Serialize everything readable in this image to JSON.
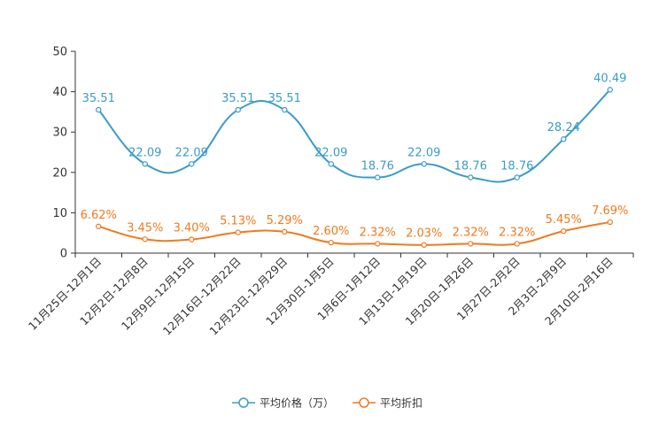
{
  "chart_data": {
    "type": "line",
    "title": "",
    "xlabel": "",
    "ylabel": "",
    "ylim": [
      0,
      50
    ],
    "yticks": [
      0,
      10,
      20,
      30,
      40,
      50
    ],
    "grid": false,
    "legend_position": "bottom-center",
    "categories": [
      "11月25日-12月1日",
      "12月2日-12月8日",
      "12月9日-12月15日",
      "12月16日-12月22日",
      "12月23日-12月29日",
      "12月30日-1月5日",
      "1月6日-1月12日",
      "1月13日-1月19日",
      "1月20日-1月26日",
      "1月27日-2月2日",
      "2月3日-2月9日",
      "2月10日-2月16日"
    ],
    "series": [
      {
        "name": "平均价格（万）",
        "color": "#3a9cc9",
        "values": [
          35.51,
          22.09,
          22.09,
          35.51,
          35.51,
          22.09,
          18.76,
          22.09,
          18.76,
          18.76,
          28.24,
          40.49
        ],
        "labels": [
          "35.51",
          "22.09",
          "22.09",
          "35.51",
          "35.51",
          "22.09",
          "18.76",
          "22.09",
          "18.76",
          "18.76",
          "28.24",
          "40.49"
        ]
      },
      {
        "name": "平均折扣",
        "color": "#f07a1d",
        "values": [
          6.62,
          3.45,
          3.4,
          5.13,
          5.29,
          2.6,
          2.32,
          2.03,
          2.32,
          2.32,
          5.45,
          7.69
        ],
        "labels": [
          "6.62%",
          "3.45%",
          "3.40%",
          "5.13%",
          "5.29%",
          "2.60%",
          "2.32%",
          "2.03%",
          "2.32%",
          "2.32%",
          "5.45%",
          "7.69%"
        ]
      }
    ]
  }
}
